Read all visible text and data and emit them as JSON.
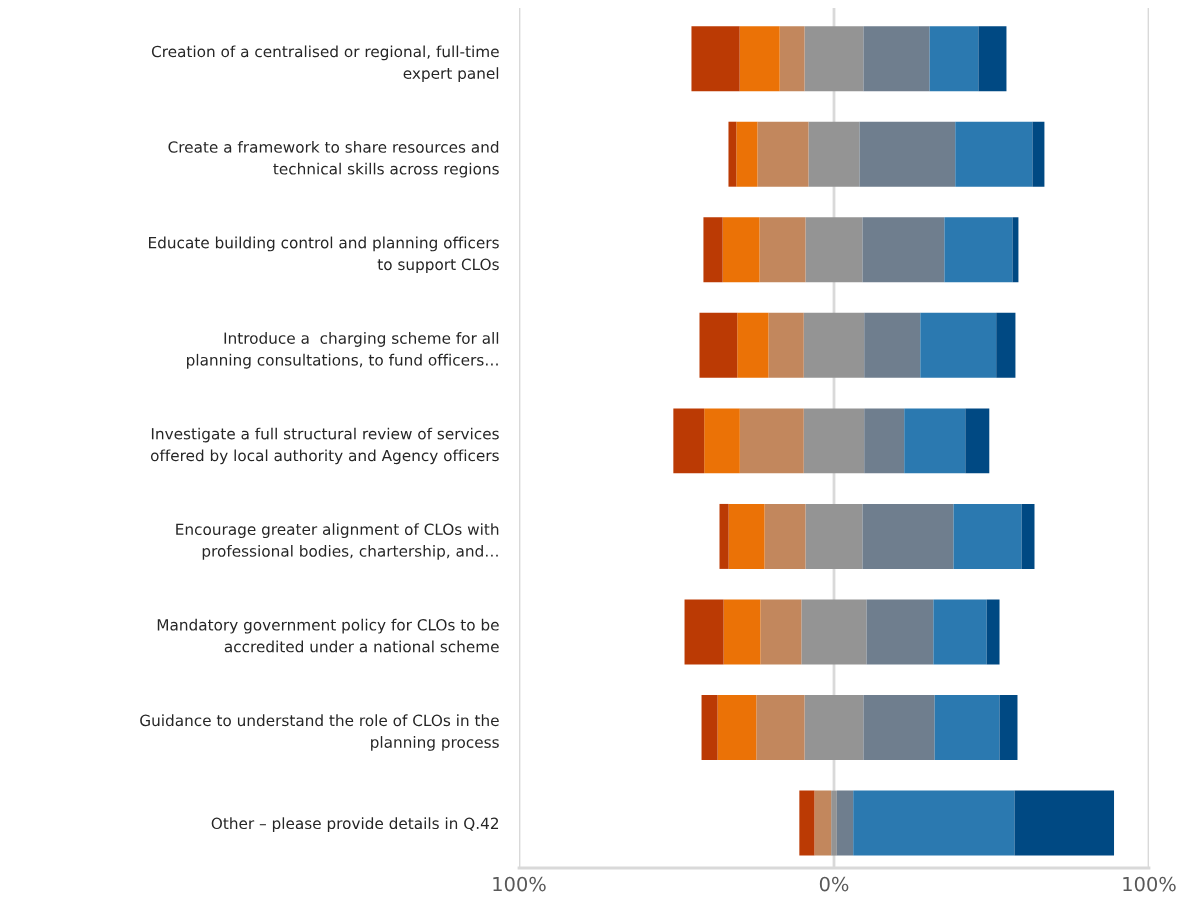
{
  "chart_data": {
    "type": "bar",
    "orientation": "horizontal",
    "categories": [
      "Creation of a centralised or regional, full-time\nexpert panel",
      "Create a framework to share resources and\ntechnical skills across regions",
      "Educate building control and planning officers\nto support CLOs",
      "Introduce a  charging scheme for all\nplanning consultations, to fund officers…",
      "Investigate a full structural review of services\noffered by local authority and Agency officers",
      "Encourage greater alignment of CLOs with\nprofessional bodies, chartership, and…",
      "Mandatory government policy for CLOs to be\naccredited under a national scheme",
      "Guidance to understand the role of CLOs in the\nplanning process",
      "Other – please provide details in Q.42"
    ],
    "series": [
      {
        "color": "#949494",
        "values": [
          18.7,
          16.2,
          18.1,
          19.2,
          19.2,
          18.1,
          20.7,
          18.7,
          1.8
        ],
        "base": [
          -9.35,
          -8.1,
          -9.05,
          -9.6,
          -9.6,
          -9.05,
          -10.35,
          -9.35,
          -0.9
        ]
      },
      {
        "color": "#c2875d",
        "values": [
          7.9,
          16.2,
          14.6,
          11.2,
          20.3,
          13.0,
          13.0,
          15.3,
          5.3
        ],
        "base": [
          -17.25,
          -24.3,
          -23.65,
          -20.8,
          -29.9,
          -22.05,
          -23.35,
          -24.65,
          -6.2
        ]
      },
      {
        "color": "#eb7206",
        "values": [
          12.7,
          6.7,
          11.7,
          9.9,
          11.3,
          11.4,
          11.7,
          12.3,
          null
        ],
        "base": [
          -29.95,
          -31.0,
          -35.35,
          -30.7,
          -41.2,
          -33.45,
          -35.05,
          -36.95,
          null
        ]
      },
      {
        "color": "#bb3a04",
        "values": [
          15.3,
          2.5,
          6.1,
          12.0,
          9.8,
          2.9,
          12.4,
          5.1,
          4.8
        ],
        "base": [
          -45.25,
          -33.5,
          -41.45,
          -42.7,
          -51.0,
          -36.35,
          -47.45,
          -42.05,
          -11.0
        ]
      },
      {
        "color": "#6f7e8e",
        "values": [
          21.0,
          30.4,
          26.0,
          17.8,
          12.7,
          28.9,
          21.2,
          22.6,
          5.2
        ],
        "base": [
          9.35,
          8.1,
          9.05,
          9.6,
          9.6,
          9.05,
          10.35,
          9.35,
          0.9
        ]
      },
      {
        "color": "#2b79b0",
        "values": [
          15.5,
          24.5,
          21.6,
          24.1,
          19.4,
          21.6,
          16.9,
          20.6,
          51.2
        ],
        "base": [
          30.35,
          38.5,
          35.05,
          27.4,
          22.3,
          37.95,
          31.55,
          31.95,
          6.1
        ]
      },
      {
        "color": "#004983",
        "values": [
          8.9,
          3.8,
          1.9,
          6.1,
          7.6,
          4.1,
          4.1,
          5.7,
          31.6
        ],
        "base": [
          45.85,
          63.0,
          56.65,
          51.5,
          41.7,
          59.55,
          48.45,
          52.55,
          57.3
        ]
      }
    ],
    "xlim": [
      -100,
      100
    ],
    "xticks": [
      {
        "value": -100,
        "label": "100%"
      },
      {
        "value": 0,
        "label": "0%"
      },
      {
        "value": 100,
        "label": "100%"
      }
    ],
    "grid": "x",
    "legend": false
  }
}
